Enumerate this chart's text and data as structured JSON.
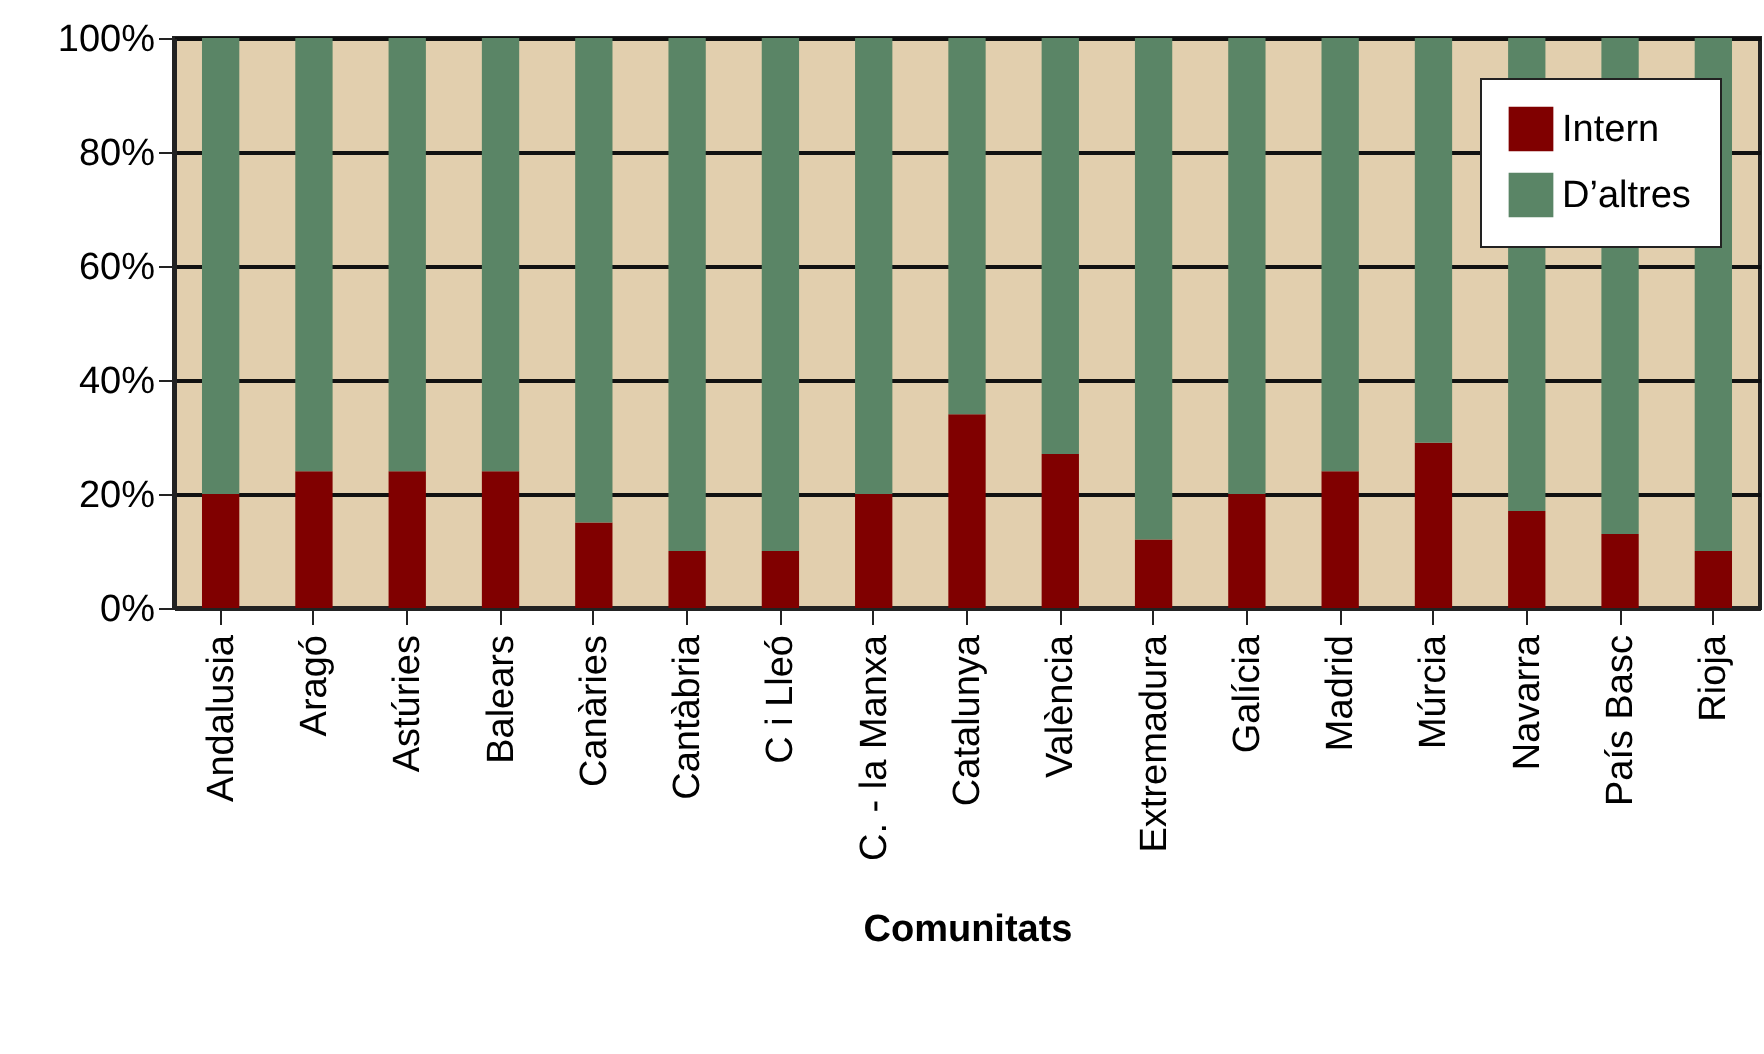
{
  "chart_data": {
    "type": "bar",
    "stacked": true,
    "xlabel": "Comunitats",
    "categories": [
      "Andalusia",
      "Aragó",
      "Astúries",
      "Balears",
      "Canàries",
      "Cantàbria",
      "C i Lleó",
      "C. - la Manxa",
      "Catalunya",
      "València",
      "Extremadura",
      "Galícia",
      "Madrid",
      "Múrcia",
      "Navarra",
      "País Basc",
      "Rioja"
    ],
    "series": [
      {
        "name": "Intern",
        "color": "#800000",
        "values": [
          20,
          24,
          24,
          24,
          15,
          10,
          10,
          20,
          34,
          27,
          12,
          20,
          24,
          29,
          17,
          13,
          10
        ]
      },
      {
        "name": "D’altres",
        "color": "#5a8566",
        "values": [
          80,
          76,
          76,
          76,
          85,
          90,
          90,
          80,
          66,
          73,
          88,
          80,
          76,
          71,
          83,
          87,
          90
        ]
      }
    ],
    "ylim": [
      0,
      100
    ],
    "yticks": [
      {
        "value": 0,
        "label": "0%"
      },
      {
        "value": 20,
        "label": "20%"
      },
      {
        "value": 40,
        "label": "40%"
      },
      {
        "value": 60,
        "label": "60%"
      },
      {
        "value": 80,
        "label": "80%"
      },
      {
        "value": 100,
        "label": "100%"
      }
    ],
    "grid": "y",
    "legend": "top right"
  }
}
